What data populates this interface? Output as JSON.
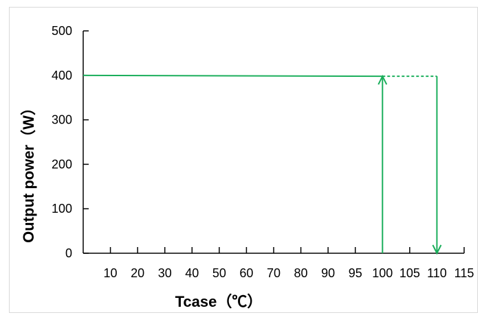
{
  "chart_data": {
    "type": "line",
    "title": "",
    "xlabel": "Tcase（℃）",
    "ylabel": "Output power（W）",
    "x_categories": [
      "10",
      "20",
      "30",
      "40",
      "50",
      "60",
      "70",
      "80",
      "90",
      "95",
      "100",
      "105",
      "110",
      "115"
    ],
    "ylim": [
      0,
      500
    ],
    "yticks": [
      0,
      100,
      200,
      300,
      400,
      500
    ],
    "grid": false,
    "legend": "none",
    "series": [
      {
        "points": [
          {
            "x": 0,
            "y": 400
          },
          {
            "x": 100,
            "y": 398
          }
        ],
        "style": "solid"
      },
      {
        "points": [
          {
            "x": 100,
            "y": 398
          },
          {
            "x": 110,
            "y": 398
          }
        ],
        "style": "dashed"
      }
    ],
    "arrows": [
      {
        "x": 100,
        "from": 0,
        "to": 398,
        "direction": "up"
      },
      {
        "x": 110,
        "from": 398,
        "to": 0,
        "direction": "down"
      }
    ],
    "line_color": "#1aae5b"
  }
}
